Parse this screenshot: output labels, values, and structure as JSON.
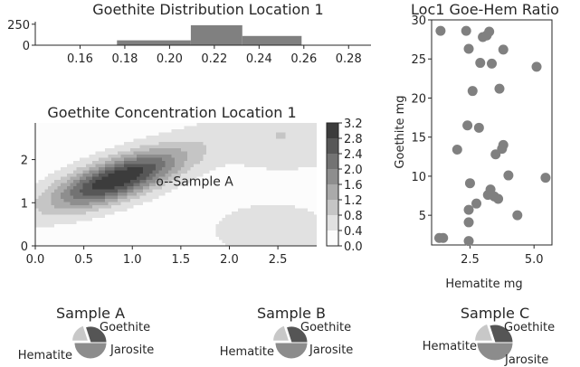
{
  "chart_data": [
    {
      "type": "bar",
      "title": "Goethite Distribution Location 1",
      "xlabel": "",
      "ylabel": "",
      "xlim": [
        0.14,
        0.29
      ],
      "ylim": [
        0,
        280
      ],
      "x_ticks": [
        "0.16",
        "0.18",
        "0.20",
        "0.22",
        "0.24",
        "0.26",
        "0.28"
      ],
      "y_ticks": [
        "0",
        "250"
      ],
      "bins": [
        {
          "start": 0.155,
          "end": 0.1765,
          "count": 5
        },
        {
          "start": 0.1765,
          "end": 0.2095,
          "count": 58
        },
        {
          "start": 0.2095,
          "end": 0.2325,
          "count": 238
        },
        {
          "start": 0.2325,
          "end": 0.259,
          "count": 110
        },
        {
          "start": 0.259,
          "end": 0.288,
          "count": 5
        }
      ],
      "color": "#808080"
    },
    {
      "type": "scatter",
      "title": "Loc1 Goe-Hem Ratio",
      "xlabel": "Hematite mg",
      "ylabel": "Goethite mg",
      "xlim": [
        1.0,
        5.7
      ],
      "ylim": [
        1.2,
        30.0
      ],
      "x_ticks": [
        "2.5",
        "5.0"
      ],
      "y_ticks": [
        "5",
        "10",
        "15",
        "20",
        "25",
        "30"
      ],
      "color": "#808080",
      "points": [
        {
          "x": 1.35,
          "y": 28.6
        },
        {
          "x": 2.35,
          "y": 28.6
        },
        {
          "x": 2.45,
          "y": 26.3
        },
        {
          "x": 3.0,
          "y": 27.8
        },
        {
          "x": 3.25,
          "y": 28.5
        },
        {
          "x": 3.15,
          "y": 28.0
        },
        {
          "x": 3.8,
          "y": 26.2
        },
        {
          "x": 2.9,
          "y": 24.5
        },
        {
          "x": 3.35,
          "y": 24.4
        },
        {
          "x": 5.1,
          "y": 24.0
        },
        {
          "x": 2.6,
          "y": 20.9
        },
        {
          "x": 3.65,
          "y": 21.2
        },
        {
          "x": 2.4,
          "y": 16.5
        },
        {
          "x": 2.85,
          "y": 16.2
        },
        {
          "x": 3.8,
          "y": 14.0
        },
        {
          "x": 3.75,
          "y": 13.5
        },
        {
          "x": 2.0,
          "y": 13.4
        },
        {
          "x": 3.5,
          "y": 12.8
        },
        {
          "x": 4.0,
          "y": 10.1
        },
        {
          "x": 5.45,
          "y": 9.8
        },
        {
          "x": 2.5,
          "y": 9.1
        },
        {
          "x": 3.3,
          "y": 8.3
        },
        {
          "x": 3.2,
          "y": 7.6
        },
        {
          "x": 3.45,
          "y": 7.4
        },
        {
          "x": 3.6,
          "y": 7.1
        },
        {
          "x": 2.75,
          "y": 6.5
        },
        {
          "x": 2.45,
          "y": 5.7
        },
        {
          "x": 4.35,
          "y": 5.0
        },
        {
          "x": 2.45,
          "y": 4.1
        },
        {
          "x": 1.3,
          "y": 2.1
        },
        {
          "x": 1.45,
          "y": 2.1
        },
        {
          "x": 2.45,
          "y": 1.7
        }
      ]
    },
    {
      "type": "heatmap",
      "subtype": "filled-contour",
      "title": "Goethite Concentration Location 1",
      "xlabel": "",
      "ylabel": "",
      "xlim": [
        0.0,
        2.9
      ],
      "ylim": [
        0.0,
        2.85
      ],
      "x_ticks": [
        "0.0",
        "0.5",
        "1.0",
        "1.5",
        "2.0",
        "2.5"
      ],
      "y_ticks": [
        "0",
        "1",
        "2"
      ],
      "colorbar_ticks": [
        "0.0",
        "0.4",
        "0.8",
        "1.2",
        "1.6",
        "2.0",
        "2.4",
        "2.8",
        "3.2"
      ],
      "colorbar_range": [
        0.0,
        3.2
      ],
      "colormap": "greys",
      "annotation": {
        "text": "o--Sample A",
        "x": 1.3,
        "y": 1.5
      }
    },
    {
      "type": "pie",
      "title": "Sample A",
      "labels": [
        "Goethite",
        "Jarosite",
        "Hematite"
      ],
      "values": [
        30,
        20,
        50
      ],
      "colors": [
        "#555555",
        "#c8c8c8",
        "#8c8c8c"
      ]
    },
    {
      "type": "pie",
      "title": "Sample B",
      "labels": [
        "Goethite",
        "Jarosite",
        "Hematite"
      ],
      "values": [
        30,
        20,
        50
      ],
      "colors": [
        "#555555",
        "#c8c8c8",
        "#8c8c8c"
      ]
    },
    {
      "type": "pie",
      "title": "Sample C",
      "labels": [
        "Goethite",
        "Jarosite",
        "Hematite"
      ],
      "values": [
        30,
        20,
        50
      ],
      "colors": [
        "#555555",
        "#c8c8c8",
        "#8c8c8c"
      ]
    }
  ]
}
